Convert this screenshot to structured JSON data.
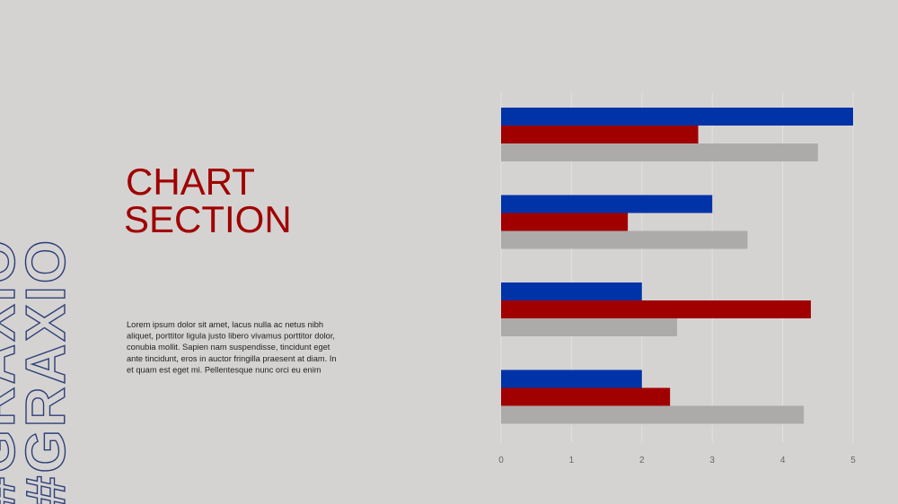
{
  "side_text": "#GRAXIO",
  "title_lines": [
    "CHART",
    "SECTION"
  ],
  "body_lines": [
    "Lorem ipsum dolor sit amet, lacus nulla ac netus nibh",
    "aliquet, porttitor ligula justo libero vivamus porttitor dolor,",
    "conubia mollit. Sapien nam suspendisse, tincidunt eget",
    "ante tincidunt, eros in auctor fringilla praesent at diam. In",
    "et quam est eget mi. Pellentesque nunc orci eu enim"
  ],
  "chart_data": {
    "type": "hbar",
    "categories": [
      null,
      null,
      null,
      null
    ],
    "series": [
      {
        "color": "#0033a8",
        "values": [
          5,
          3,
          2,
          2
        ]
      },
      {
        "color": "#a00000",
        "values": [
          2.8,
          1.8,
          4.4,
          2.4
        ]
      },
      {
        "color": "#adabaa",
        "values": [
          4.5,
          3.5,
          2.5,
          4.3
        ]
      }
    ],
    "xlim": [
      0,
      5
    ],
    "xticks": [
      0,
      1,
      2,
      3,
      4,
      5
    ],
    "grid": true
  }
}
